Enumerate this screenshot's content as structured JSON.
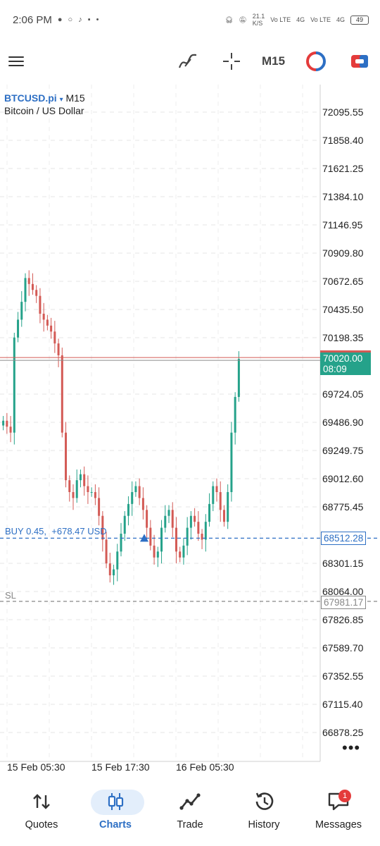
{
  "status_bar": {
    "time": "2:06 PM",
    "net_speed": "21.1",
    "net_unit": "K/S",
    "sim1": "Vo LTE",
    "sim1_type": "4G",
    "sim2": "Vo LTE",
    "sim2_type": "4G",
    "battery": "49"
  },
  "toolbar": {
    "timeframe": "M15",
    "icons": [
      "menu-icon",
      "indicators-icon",
      "crosshair-icon",
      "one-click-trading-icon",
      "trade-panel-icon"
    ]
  },
  "chart": {
    "symbol": "BTCUSD.pi",
    "dropdown_marker": "▾",
    "timeframe": "M15",
    "description": "Bitcoin / US Dollar",
    "price_axis": [
      "72095.55",
      "71858.40",
      "71621.25",
      "71384.10",
      "71146.95",
      "70909.80",
      "70672.65",
      "70435.50",
      "70198.35",
      "69724.05",
      "69486.90",
      "69249.75",
      "69012.60",
      "68775.45",
      "68301.15",
      "68064.00",
      "67826.85",
      "67589.70",
      "67352.55",
      "67115.40",
      "66878.25"
    ],
    "time_axis": [
      "15 Feb 05:30",
      "15 Feb 17:30",
      "16 Feb 05:30"
    ],
    "current_price": "70020.00",
    "countdown": "08:09",
    "buy_label": "BUY 0.45,",
    "buy_profit": "+678.47 USD",
    "buy_price": "68512.28",
    "sl_label": "SL",
    "sl_price": "67981.17",
    "more": "•••",
    "colors": {
      "bull": "#25a28a",
      "bear": "#d35a55",
      "buy": "#2d6fc4",
      "sl": "#888888"
    }
  },
  "chart_data": {
    "type": "candlestick",
    "symbol": "BTCUSD.pi",
    "timeframe": "M15",
    "y_range": [
      66820,
      72150
    ],
    "close_path": [
      69500,
      69450,
      69400,
      70200,
      70350,
      70500,
      70700,
      70650,
      70600,
      70550,
      70400,
      70350,
      70300,
      70250,
      70150,
      70050,
      69400,
      69000,
      68900,
      68850,
      69000,
      69050,
      68950,
      68900,
      68900,
      68850,
      68700,
      68500,
      68300,
      68200,
      68250,
      68400,
      68550,
      68700,
      68800,
      68900,
      68950,
      68850,
      68750,
      68600,
      68450,
      68350,
      68400,
      68600,
      68700,
      68750,
      68600,
      68400,
      68350,
      68450,
      68600,
      68700,
      68650,
      68550,
      68500,
      68650,
      68800,
      68950,
      68900,
      68750,
      68650,
      68900,
      69400,
      69700,
      70020
    ],
    "current_price": 70020.0,
    "buy_price": 68512.28,
    "sl_price": 67981.17
  },
  "bottom_nav": [
    {
      "label": "Quotes",
      "icon": "quotes-icon"
    },
    {
      "label": "Charts",
      "icon": "charts-icon"
    },
    {
      "label": "Trade",
      "icon": "trade-icon"
    },
    {
      "label": "History",
      "icon": "history-icon"
    },
    {
      "label": "Messages",
      "icon": "messages-icon",
      "badge": "1"
    }
  ]
}
